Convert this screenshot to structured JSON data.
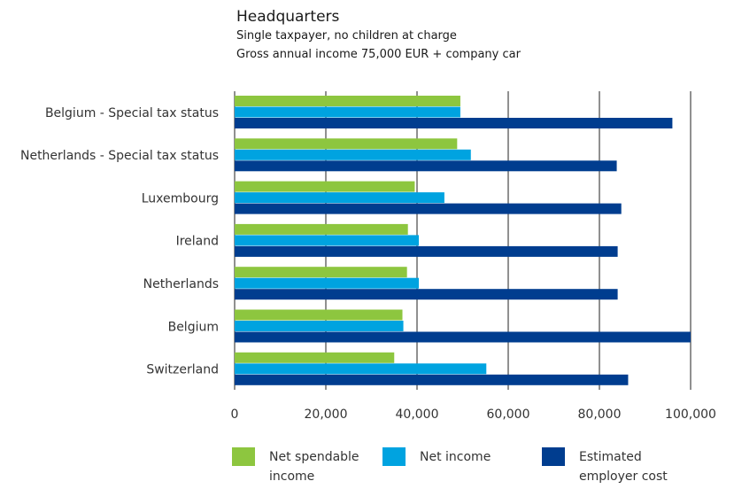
{
  "title": "Headquarters",
  "subtitle_lines": [
    "Single taxpayer, no children at charge",
    "Gross annual income 75,000 EUR + company car"
  ],
  "colors": {
    "net_spendable": "#8dc63f",
    "net_income": "#00a3e0",
    "employer_cost": "#003d8f",
    "grid": "#222222"
  },
  "chart_data": {
    "type": "bar",
    "orientation": "horizontal",
    "title": "Headquarters",
    "subtitle": "Single taxpayer, no children at charge / Gross annual income 75,000 EUR + company car",
    "categories": [
      "Belgium - Special tax status",
      "Netherlands - Special tax status",
      "Luxembourg",
      "Ireland",
      "Netherlands",
      "Belgium",
      "Switzerland"
    ],
    "series": [
      {
        "name": "Net spendable income",
        "values": [
          49500,
          48800,
          39500,
          38000,
          37800,
          36800,
          35000
        ]
      },
      {
        "name": "Net income",
        "values": [
          49500,
          51800,
          46000,
          40400,
          40400,
          37000,
          55200
        ]
      },
      {
        "name": "Estimated employer cost",
        "values": [
          96000,
          83800,
          84800,
          84000,
          84000,
          100000,
          86300
        ]
      }
    ],
    "xlim": [
      0,
      100000
    ],
    "xticks": [
      "0",
      "20,000",
      "40,000",
      "60,000",
      "80,000",
      "100,000"
    ],
    "xtick_values": [
      0,
      20000,
      40000,
      60000,
      80000,
      100000
    ],
    "grid": true,
    "legend_position": "bottom"
  },
  "legend": [
    {
      "label_lines": [
        "Net spendable",
        "income"
      ]
    },
    {
      "label_lines": [
        "Net income"
      ]
    },
    {
      "label_lines": [
        "Estimated",
        "employer cost"
      ]
    }
  ]
}
